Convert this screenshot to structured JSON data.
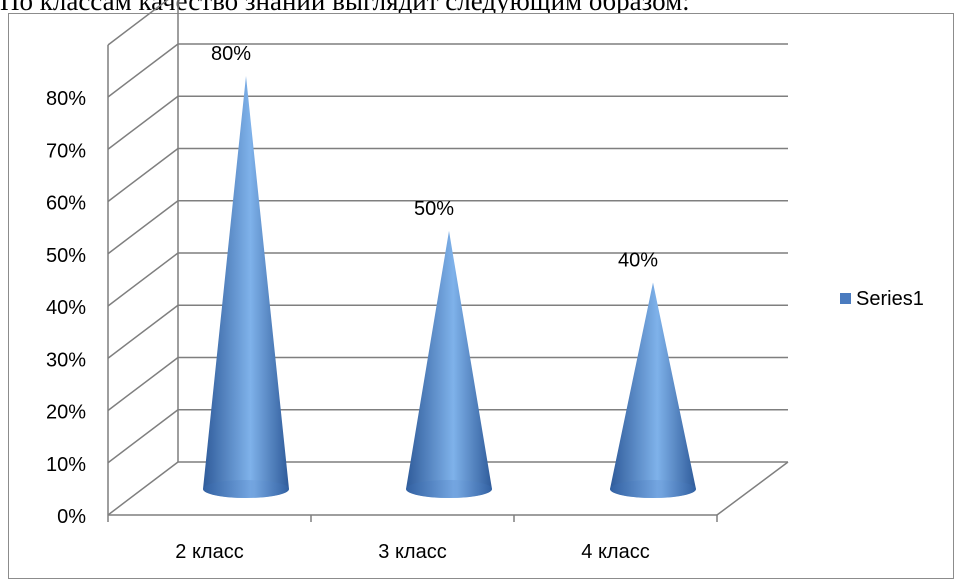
{
  "caption": "По классам качество знаний выглядит следующим образом:",
  "chart_data": {
    "type": "bar",
    "style": "3d-cone",
    "categories": [
      "2 класс",
      "3 класс",
      "4 класс"
    ],
    "series": [
      {
        "name": "Series1",
        "values": [
          0.8,
          0.5,
          0.4
        ],
        "color": "#4a7bbf"
      }
    ],
    "data_labels": [
      "80%",
      "50%",
      "40%"
    ],
    "ylim": [
      0,
      0.8
    ],
    "yticks": [
      0,
      0.1,
      0.2,
      0.3,
      0.4,
      0.5,
      0.6,
      0.7,
      0.8
    ],
    "ytick_labels": [
      "0%",
      "10%",
      "20%",
      "30%",
      "40%",
      "50%",
      "60%",
      "70%",
      "80%"
    ],
    "grid": true,
    "legend_position": "right",
    "colors": {
      "gridline": "#7f7f7f",
      "cone_dark": "#3a64a3",
      "cone_light": "#7fb2ea"
    }
  }
}
